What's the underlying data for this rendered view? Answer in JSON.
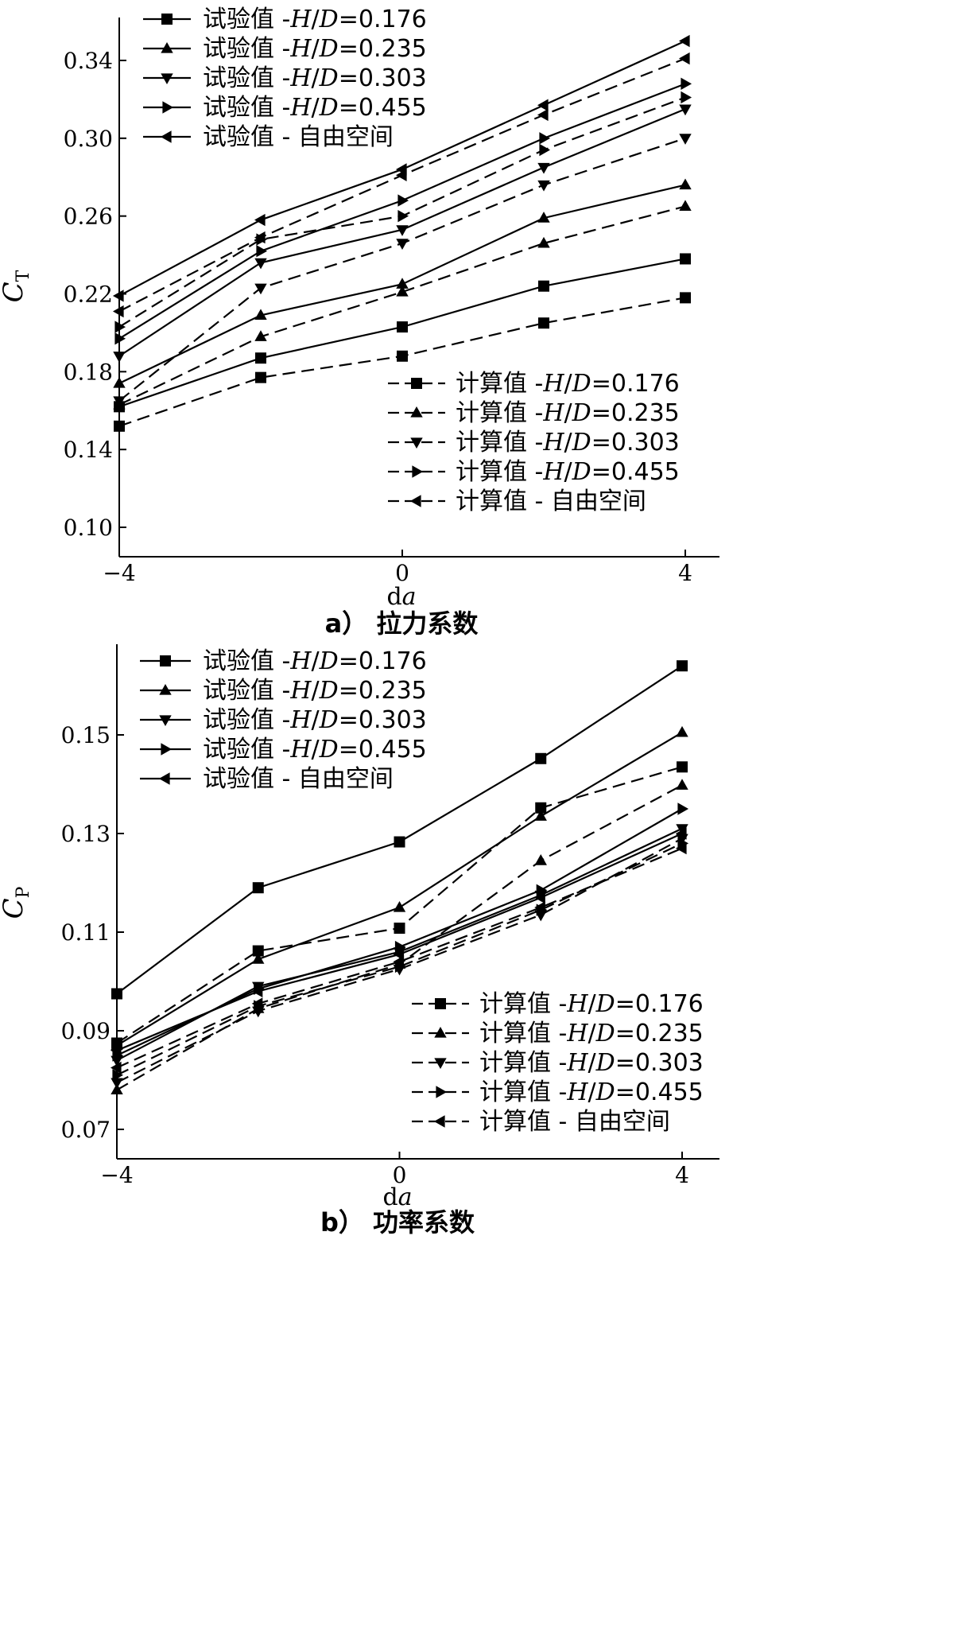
{
  "chart_data": [
    {
      "type": "line",
      "caption": "a） 拉力系数",
      "xlabel": "da",
      "ylabel": "C_T",
      "xlim": [
        -4,
        4
      ],
      "ylim": [
        0.1,
        0.36
      ],
      "xticks": [
        "−4",
        "0",
        "4"
      ],
      "yticks": [
        "0.10",
        "0.14",
        "0.18",
        "0.22",
        "0.26",
        "0.30",
        "0.34"
      ],
      "x": [
        -4,
        -2,
        0,
        2,
        4
      ],
      "legends": [
        {
          "position": "top-left",
          "entries": [
            "试验值 -H/D=0.176",
            "试验值 -H/D=0.235",
            "试验值 -H/D=0.303",
            "试验值 -H/D=0.455",
            "试验值 - 自由空间"
          ]
        },
        {
          "position": "bottom-right",
          "entries": [
            "计算值 -H/D=0.176",
            "计算值 -H/D=0.235",
            "计算值 -H/D=0.303",
            "计算值 -H/D=0.455",
            "计算值 - 自由空间"
          ]
        }
      ],
      "series": [
        {
          "name": "试验值 -H/D=0.176",
          "marker": "square",
          "dash": "solid",
          "values": [
            0.162,
            0.187,
            0.203,
            0.224,
            0.238
          ]
        },
        {
          "name": "试验值 -H/D=0.235",
          "marker": "triangle-up",
          "dash": "solid",
          "values": [
            0.174,
            0.209,
            0.225,
            0.259,
            0.276
          ]
        },
        {
          "name": "试验值 -H/D=0.303",
          "marker": "triangle-down",
          "dash": "solid",
          "values": [
            0.188,
            0.236,
            0.253,
            0.285,
            0.315
          ]
        },
        {
          "name": "试验值 -H/D=0.455",
          "marker": "triangle-right",
          "dash": "solid",
          "values": [
            0.197,
            0.242,
            0.268,
            0.3,
            0.328
          ]
        },
        {
          "name": "试验值 - 自由空间",
          "marker": "triangle-left",
          "dash": "solid",
          "values": [
            0.219,
            0.258,
            0.284,
            0.317,
            0.35
          ]
        },
        {
          "name": "计算值 -H/D=0.176",
          "marker": "square",
          "dash": "dashed",
          "values": [
            0.152,
            0.177,
            0.188,
            0.205,
            0.218
          ]
        },
        {
          "name": "计算值 -H/D=0.235",
          "marker": "triangle-up",
          "dash": "dashed",
          "values": [
            0.163,
            0.198,
            0.221,
            0.246,
            0.265
          ]
        },
        {
          "name": "计算值 -H/D=0.303",
          "marker": "triangle-down",
          "dash": "dashed",
          "values": [
            0.165,
            0.223,
            0.246,
            0.276,
            0.3
          ]
        },
        {
          "name": "计算值 -H/D=0.455",
          "marker": "triangle-right",
          "dash": "dashed",
          "values": [
            0.203,
            0.248,
            0.26,
            0.294,
            0.321
          ]
        },
        {
          "name": "计算值 - 自由空间",
          "marker": "triangle-left",
          "dash": "dashed",
          "values": [
            0.211,
            0.249,
            0.281,
            0.312,
            0.341
          ]
        }
      ]
    },
    {
      "type": "line",
      "caption": "b） 功率系数",
      "xlabel": "da",
      "ylabel": "C_P",
      "xlim": [
        -4,
        4
      ],
      "ylim": [
        0.07,
        0.167
      ],
      "xticks": [
        "−4",
        "0",
        "4"
      ],
      "yticks": [
        "0.07",
        "0.09",
        "0.11",
        "0.13",
        "0.15"
      ],
      "x": [
        -4,
        -2,
        0,
        2,
        4
      ],
      "legends": [
        {
          "position": "top-left",
          "entries": [
            "试验值 -H/D=0.176",
            "试验值 -H/D=0.235",
            "试验值 -H/D=0.303",
            "试验值 -H/D=0.455",
            "试验值 - 自由空间"
          ]
        },
        {
          "position": "bottom-right",
          "entries": [
            "计算值 -H/D=0.176",
            "计算值 -H/D=0.235",
            "计算值 -H/D=0.303",
            "计算值 -H/D=0.455",
            "计算值 - 自由空间"
          ]
        }
      ],
      "series": [
        {
          "name": "试验值 -H/D=0.176",
          "marker": "square",
          "dash": "solid",
          "values": [
            0.0975,
            0.119,
            0.1283,
            0.1452,
            0.164
          ]
        },
        {
          "name": "试验值 -H/D=0.235",
          "marker": "triangle-up",
          "dash": "solid",
          "values": [
            0.087,
            0.1045,
            0.115,
            0.1335,
            0.1505
          ]
        },
        {
          "name": "试验值 -H/D=0.303",
          "marker": "triangle-down",
          "dash": "solid",
          "values": [
            0.084,
            0.099,
            0.106,
            0.1175,
            0.131
          ]
        },
        {
          "name": "试验值 -H/D=0.455",
          "marker": "triangle-right",
          "dash": "solid",
          "values": [
            0.085,
            0.0985,
            0.107,
            0.1185,
            0.135
          ]
        },
        {
          "name": "试验值 - 自由空间",
          "marker": "triangle-left",
          "dash": "solid",
          "values": [
            0.086,
            0.098,
            0.1055,
            0.117,
            0.13
          ]
        },
        {
          "name": "计算值 -H/D=0.176",
          "marker": "square",
          "dash": "dashed",
          "values": [
            0.0875,
            0.1062,
            0.1108,
            0.1352,
            0.1435
          ]
        },
        {
          "name": "计算值 -H/D=0.235",
          "marker": "triangle-up",
          "dash": "dashed",
          "values": [
            0.078,
            0.0945,
            0.1035,
            0.1245,
            0.1398
          ]
        },
        {
          "name": "计算值 -H/D=0.303",
          "marker": "triangle-down",
          "dash": "dashed",
          "values": [
            0.0795,
            0.094,
            0.1025,
            0.1135,
            0.129
          ]
        },
        {
          "name": "计算值 -H/D=0.455",
          "marker": "triangle-right",
          "dash": "dashed",
          "values": [
            0.081,
            0.095,
            0.103,
            0.1145,
            0.128
          ]
        },
        {
          "name": "计算值 - 自由空间",
          "marker": "triangle-left",
          "dash": "dashed",
          "values": [
            0.0825,
            0.0955,
            0.104,
            0.115,
            0.127
          ]
        }
      ]
    }
  ]
}
